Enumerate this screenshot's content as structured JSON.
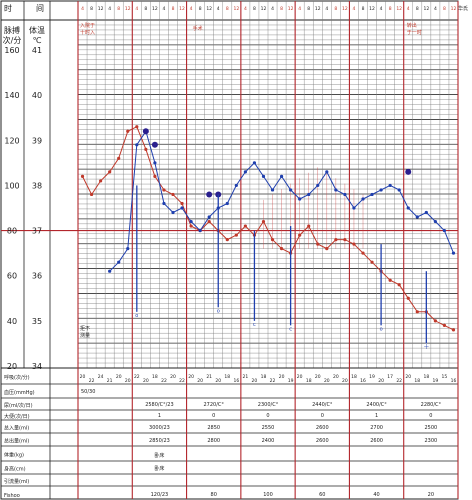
{
  "header": {
    "time_label": "时",
    "time_label2": "间",
    "hours": [
      "4",
      "8",
      "12",
      "4",
      "8",
      "12"
    ],
    "right_corner": "华氏"
  },
  "axis": {
    "pulse_title_1": "脉搏",
    "pulse_title_2": "次/分",
    "temp_title_1": "体温",
    "temp_title_2": "℃",
    "pulse_ticks": [
      "160",
      "140",
      "120",
      "100",
      "80",
      "60",
      "40",
      "20"
    ],
    "temp_ticks": [
      "41",
      "40",
      "39",
      "38",
      "37",
      "36",
      "35",
      "34"
    ]
  },
  "annotations": {
    "admission": [
      "入",
      "院",
      "于",
      "时",
      "入",
      "时",
      "分"
    ],
    "admission_line1": "入院于",
    "admission_line2": "十时入",
    "surgery": "手术",
    "discharge_line1": "转出",
    "discharge_line2": "于一时",
    "refuse_line1": "拒不",
    "refuse_line2": "测量",
    "marker_o_small": "o",
    "marker_c_small": "c",
    "marker_cross": "十"
  },
  "rows": {
    "resp_label": "呼吸(次/分)",
    "resp_values": [
      "20",
      "22",
      "24",
      "21",
      "20",
      "20",
      "22",
      "20",
      "18",
      "22",
      "20",
      "22",
      "20",
      "20",
      "21",
      "20",
      "18",
      "16",
      "21",
      "20",
      "18",
      "22",
      "20",
      "19",
      "20",
      "18",
      "20",
      "20",
      "20",
      "20",
      "18",
      "16",
      "19",
      "20",
      "17",
      "22",
      "20",
      "18",
      "18",
      "19",
      "15",
      "16"
    ],
    "bp_label": "血压(mmHg)",
    "bp_value": "50/30",
    "urine_label": "尿(ml/次/日)",
    "urine_values": [
      "2580/C°/23",
      "2720/C°",
      "2300/C°",
      "2440/C°",
      "2400/C°",
      "2280/C°"
    ],
    "stool_label": "大便(次/日)",
    "stool_values": [
      "1",
      "0",
      "0",
      "0",
      "1",
      "0"
    ],
    "intake_label": "总入量(ml)",
    "intake_values": [
      "3000/23",
      "2850",
      "2550",
      "2600",
      "2700",
      "2500"
    ],
    "output_label": "总出量(ml)",
    "output_values": [
      "2850/23",
      "2800",
      "2400",
      "2600",
      "2600",
      "2300"
    ],
    "weight_label": "体重(kg)",
    "weight_value": "卧床",
    "height_label": "身高(cm)",
    "height_value": "卧床",
    "drain_label": "引流量(ml)",
    "drain_values": [
      "120/23",
      "80",
      "100",
      "60",
      "40",
      "20"
    ]
  },
  "watermark": "Fishoo",
  "colors": {
    "grid": "#222222",
    "minor_grid": "#777777",
    "red_line": "#b3262c",
    "pulse_blue": "#1f3fae",
    "temp_red": "#c0392b",
    "shade": "#c44"
  }
}
